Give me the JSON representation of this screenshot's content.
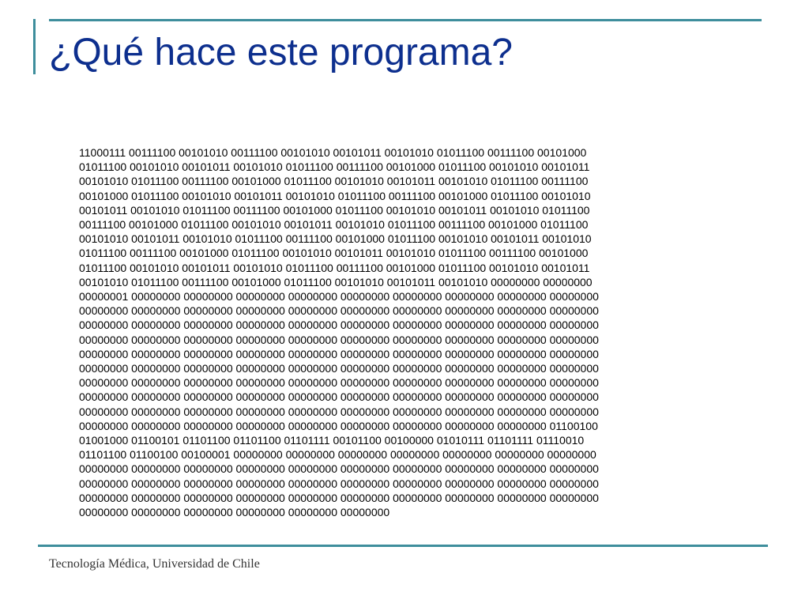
{
  "slide": {
    "title": "¿Qué hace este programa?",
    "footer": "Tecnología Médica, Universidad de Chile",
    "binary_lines": [
      "11000111 00111100 00101010 00111100 00101010 00101011 00101010 01011100 00111100 00101000",
      "01011100 00101010 00101011 00101010 01011100 00111100 00101000 01011100 00101010 00101011",
      "00101010 01011100 00111100 00101000 01011100 00101010 00101011 00101010 01011100 00111100",
      "00101000 01011100 00101010 00101011 00101010 01011100 00111100 00101000 01011100 00101010",
      "00101011 00101010 01011100 00111100 00101000 01011100 00101010 00101011 00101010 01011100",
      "00111100 00101000 01011100 00101010 00101011 00101010 01011100 00111100 00101000 01011100",
      "00101010 00101011 00101010 01011100 00111100 00101000 01011100 00101010 00101011 00101010",
      "01011100 00111100 00101000 01011100 00101010 00101011 00101010 01011100 00111100 00101000",
      "01011100 00101010 00101011 00101010 01011100 00111100 00101000 01011100 00101010 00101011",
      "00101010 01011100 00111100 00101000 01011100 00101010 00101011 00101010 00000000 00000000",
      "00000001 00000000 00000000 00000000 00000000 00000000 00000000 00000000 00000000 00000000",
      "00000000 00000000 00000000 00000000 00000000 00000000 00000000 00000000 00000000 00000000",
      "00000000 00000000 00000000 00000000 00000000 00000000 00000000 00000000 00000000 00000000",
      "00000000 00000000 00000000 00000000 00000000 00000000 00000000 00000000 00000000 00000000",
      "00000000 00000000 00000000 00000000 00000000 00000000 00000000 00000000 00000000 00000000",
      "00000000 00000000 00000000 00000000 00000000 00000000 00000000 00000000 00000000 00000000",
      "00000000 00000000 00000000 00000000 00000000 00000000 00000000 00000000 00000000 00000000",
      "00000000 00000000 00000000 00000000 00000000 00000000 00000000 00000000 00000000 00000000",
      "00000000 00000000 00000000 00000000 00000000 00000000 00000000 00000000 00000000 00000000",
      "00000000 00000000 00000000 00000000 00000000 00000000 00000000 00000000 00000000 01100100",
      "01001000 01100101 01101100 01101100 01101111 00101100 00100000 01010111 01101111 01110010",
      "01101100 01100100 00100001 00000000 00000000 00000000 00000000 00000000 00000000 00000000",
      "00000000 00000000 00000000 00000000 00000000 00000000 00000000 00000000 00000000 00000000",
      "00000000 00000000 00000000 00000000 00000000 00000000 00000000 00000000 00000000 00000000",
      "00000000 00000000 00000000 00000000 00000000 00000000 00000000 00000000 00000000 00000000",
      "00000000 00000000 00000000 00000000 00000000 00000000"
    ]
  },
  "colors": {
    "title": "#0d2f8e",
    "rule": "#3e8e9c",
    "body_text": "#000000",
    "footer_text": "#333333",
    "background": "#ffffff"
  }
}
